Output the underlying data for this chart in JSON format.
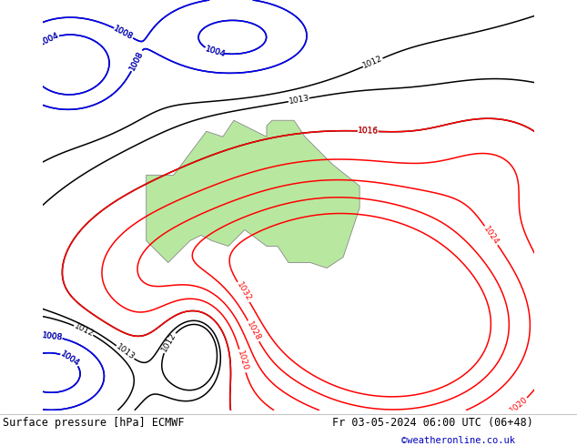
{
  "title_left": "Surface pressure [hPa] ECMWF",
  "title_right": "Fr 03-05-2024 06:00 UTC (06+48)",
  "credit": "©weatheronline.co.uk",
  "bg_color": "#d4dce8",
  "land_color": "#b8e8a0",
  "coast_color": "#888888",
  "fig_width": 6.34,
  "fig_height": 4.9,
  "dpi": 100,
  "credit_color": "#0000bb",
  "map_lon_min": 95,
  "map_lon_max": 185,
  "map_lat_min": -65,
  "map_lat_max": 10
}
